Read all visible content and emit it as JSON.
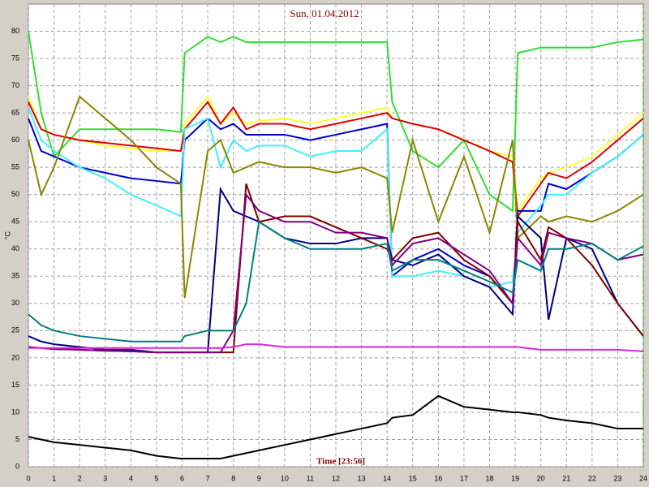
{
  "chart_data": {
    "type": "line",
    "title": "Sun, 01.04.2012",
    "x_label": "Time [23:56]",
    "y_label": "°C",
    "xlim": [
      0,
      24
    ],
    "xticks": [
      0,
      1,
      2,
      3,
      4,
      5,
      6,
      7,
      8,
      9,
      10,
      11,
      12,
      13,
      14,
      15,
      16,
      17,
      18,
      19,
      20,
      21,
      22,
      23,
      24
    ],
    "ylim": [
      0,
      85
    ],
    "yticks": [
      0,
      5,
      10,
      15,
      20,
      25,
      30,
      35,
      40,
      45,
      50,
      55,
      60,
      65,
      70,
      75,
      80
    ],
    "grid": true,
    "x": [
      0,
      0.5,
      1,
      2,
      3,
      4,
      5,
      5.95,
      6.1,
      7,
      7.5,
      8,
      8.5,
      9,
      10,
      11,
      12,
      13,
      14,
      14.2,
      15,
      16,
      17,
      18,
      18.9,
      19.1,
      20,
      20.3,
      21,
      22,
      23,
      24
    ],
    "series": [
      {
        "color": "#33dd33",
        "values": [
          80,
          65,
          57,
          62,
          62,
          62,
          62,
          61.5,
          76,
          79,
          78,
          79,
          78,
          78,
          78,
          78,
          78,
          78,
          78,
          67,
          58,
          55,
          60,
          50,
          47,
          76,
          77,
          77,
          77,
          77,
          78,
          78.5
        ]
      },
      {
        "color": "#ffff33",
        "values": [
          68,
          62,
          61,
          60,
          59,
          58.5,
          58,
          58,
          63,
          68,
          63,
          65,
          63,
          63.5,
          64,
          63,
          64,
          65,
          66,
          64,
          63,
          62,
          60,
          58,
          57,
          47,
          53,
          54,
          55,
          57,
          61,
          65
        ]
      },
      {
        "color": "#dd0000",
        "values": [
          67,
          62,
          61,
          60,
          59.5,
          59,
          58.5,
          58,
          62,
          67,
          63,
          66,
          62,
          63,
          63,
          62,
          63,
          64,
          65,
          64,
          63,
          62,
          60,
          58,
          56,
          46,
          52,
          54,
          53,
          56,
          60,
          64
        ]
      },
      {
        "color": "#0000cc",
        "values": [
          64,
          58,
          57,
          55,
          54,
          53,
          52.5,
          52,
          60,
          64,
          62,
          63,
          61,
          61,
          61,
          60,
          61,
          62,
          63,
          35,
          38,
          40,
          37,
          35,
          30,
          47,
          47,
          52,
          51,
          54,
          57,
          61
        ]
      },
      {
        "color": "#44eeff",
        "values": [
          66,
          60,
          58,
          55,
          53,
          50,
          48,
          46,
          62,
          64,
          55,
          60,
          58,
          59,
          59,
          57,
          58,
          58,
          62,
          35,
          35,
          36,
          35,
          33,
          34,
          43,
          48,
          50,
          50,
          54,
          57,
          61
        ]
      },
      {
        "color": "#888800",
        "values": [
          60,
          50,
          55,
          68,
          64,
          60,
          55,
          52,
          31,
          58,
          60,
          54,
          55,
          56,
          55,
          55,
          54,
          55,
          53,
          43,
          60,
          45,
          57,
          43,
          60,
          42,
          46,
          45,
          46,
          45,
          47,
          50
        ]
      },
      {
        "color": "#000080",
        "values": [
          24,
          23,
          22.5,
          22,
          21.5,
          21.5,
          21,
          21,
          21,
          21,
          51,
          47,
          46,
          45,
          42,
          41,
          41,
          42,
          42,
          38,
          37,
          39,
          35,
          33,
          28,
          46,
          42,
          27,
          42,
          40,
          30,
          24
        ]
      },
      {
        "color": "#800000",
        "values": [
          22,
          21.8,
          21.6,
          21.5,
          21.3,
          21.2,
          21,
          21,
          21,
          21,
          21,
          21,
          52,
          45,
          46,
          46,
          44,
          42,
          40,
          38,
          42,
          43,
          38,
          35,
          30,
          45,
          38,
          44,
          42,
          37,
          30,
          24
        ]
      },
      {
        "color": "#800080",
        "values": [
          22,
          21.8,
          21.6,
          21.5,
          21.3,
          21.2,
          21,
          21,
          21,
          21,
          21,
          25,
          50,
          47,
          45,
          45,
          43,
          43,
          42,
          37,
          41,
          42,
          39,
          36,
          30,
          42,
          37,
          43,
          42,
          41,
          38,
          39
        ]
      },
      {
        "color": "#008080",
        "values": [
          28,
          26,
          25,
          24,
          23.5,
          23,
          23,
          23,
          24,
          25,
          25,
          25,
          30,
          45,
          42,
          40,
          40,
          40,
          41,
          36,
          38,
          38,
          36,
          34,
          32,
          38,
          36,
          40,
          40,
          41,
          38,
          40.5
        ]
      },
      {
        "color": "#dd22dd",
        "values": [
          21.8,
          21.8,
          21.8,
          21.8,
          21.8,
          21.8,
          21.8,
          21.8,
          21.8,
          21.8,
          21.8,
          22,
          22.5,
          22.5,
          22,
          22,
          22,
          22,
          22,
          22,
          22,
          22,
          22,
          22,
          22,
          22,
          21.5,
          21.5,
          21.5,
          21.5,
          21.5,
          21.2
        ]
      },
      {
        "color": "#000000",
        "values": [
          5.5,
          5,
          4.5,
          4,
          3.5,
          3,
          2,
          1.5,
          1.5,
          1.5,
          1.5,
          2,
          2.5,
          3,
          4,
          5,
          6,
          7,
          8,
          9,
          9.5,
          13,
          11,
          10.5,
          10,
          10,
          9.5,
          9,
          8.5,
          8,
          7,
          7
        ]
      }
    ]
  }
}
